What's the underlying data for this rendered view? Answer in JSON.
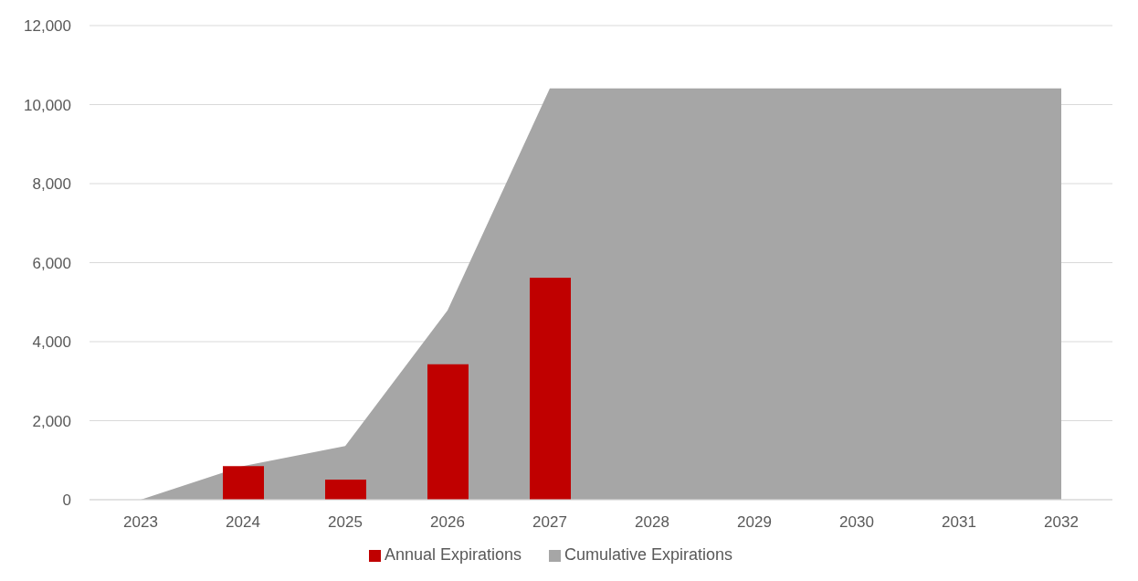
{
  "chart_data": {
    "type": "bar",
    "categories": [
      "2023",
      "2024",
      "2025",
      "2026",
      "2027",
      "2028",
      "2029",
      "2030",
      "2031",
      "2032"
    ],
    "series": [
      {
        "name": "Cumulative Expirations",
        "type": "area",
        "color": "#a6a6a6",
        "values": [
          0,
          850,
          1360,
          4790,
          10410,
          10410,
          10410,
          10410,
          10410,
          10410
        ]
      },
      {
        "name": "Annual Expirations",
        "color": "#c00000",
        "values": [
          0,
          850,
          510,
          3430,
          5620,
          0,
          0,
          0,
          0,
          0
        ]
      }
    ],
    "ylim": [
      0,
      12000
    ],
    "yticks": [
      0,
      {
        "value": 2000,
        "label": "2,000"
      },
      {
        "value": 4000,
        "label": "4,000"
      },
      {
        "value": 6000,
        "label": "6,000"
      },
      {
        "value": 8000,
        "label": "8,000"
      },
      {
        "value": 10000,
        "label": "10,000"
      },
      {
        "value": 12000,
        "label": "12,000"
      }
    ],
    "grid": "y",
    "legend": "bottom"
  }
}
